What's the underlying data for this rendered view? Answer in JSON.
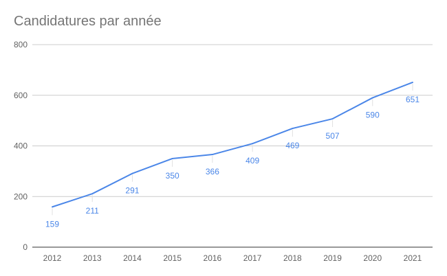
{
  "chart_data": {
    "type": "line",
    "title": "Candidatures par année",
    "xlabel": "",
    "ylabel": "",
    "x": [
      "2012",
      "2013",
      "2014",
      "2015",
      "2016",
      "2017",
      "2018",
      "2019",
      "2020",
      "2021"
    ],
    "series": [
      {
        "values": [
          159,
          211,
          291,
          350,
          366,
          409,
          469,
          507,
          590,
          651
        ]
      }
    ],
    "data_labels": [
      "159",
      "211",
      "291",
      "350",
      "366",
      "409",
      "469",
      "507",
      "590",
      "651"
    ],
    "yticks": [
      0,
      200,
      400,
      600,
      800
    ],
    "ytick_labels": [
      "0",
      "200",
      "400",
      "600",
      "800"
    ],
    "ylim": [
      0,
      800
    ],
    "grid": true,
    "legend": "none",
    "line_color": "#4a86e8",
    "grid_color": "#cccccc",
    "axis_color": "#333333"
  }
}
